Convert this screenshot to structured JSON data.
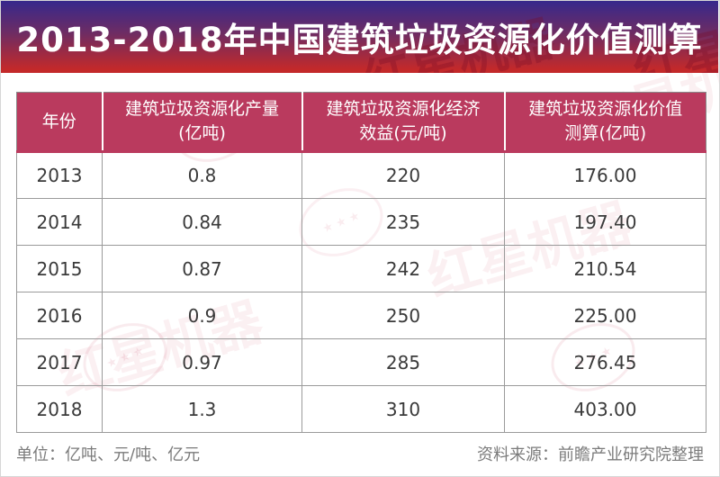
{
  "banner": {
    "title": "2013-2018年中国建筑垃圾资源化价值测算",
    "gradient_top": "#36288c",
    "gradient_bottom": "#c3292a"
  },
  "table": {
    "header_bg": "#ba3a5e",
    "columns": [
      "年份",
      "建筑垃圾资源化产量\n(亿吨)",
      "建筑垃圾资源化经济\n效益(元/吨)",
      "建筑垃圾资源化价值\n测算(亿吨)"
    ],
    "rows": [
      [
        "2013",
        "0.8",
        "220",
        "176.00"
      ],
      [
        "2014",
        "0.84",
        "235",
        "197.40"
      ],
      [
        "2015",
        "0.87",
        "242",
        "210.54"
      ],
      [
        "2016",
        "0.9",
        "250",
        "225.00"
      ],
      [
        "2017",
        "0.97",
        "285",
        "276.45"
      ],
      [
        "2018",
        "1.3",
        "310",
        "403.00"
      ]
    ]
  },
  "footer": {
    "units": "单位：亿吨、元/吨、亿元",
    "source": "资料来源：前瞻产业研究院整理"
  },
  "watermark": {
    "text": "红星机器",
    "subtext": "MACHINERY",
    "stamp_glyph": "★ ★ ★"
  },
  "chart_data": {
    "type": "table",
    "title": "2013-2018年中国建筑垃圾资源化价值测算",
    "columns": [
      "年份",
      "建筑垃圾资源化产量(亿吨)",
      "建筑垃圾资源化经济效益(元/吨)",
      "建筑垃圾资源化价值测算(亿吨)"
    ],
    "rows": [
      [
        2013,
        0.8,
        220,
        176.0
      ],
      [
        2014,
        0.84,
        235,
        197.4
      ],
      [
        2015,
        0.87,
        242,
        210.54
      ],
      [
        2016,
        0.9,
        250,
        225.0
      ],
      [
        2017,
        0.97,
        285,
        276.45
      ],
      [
        2018,
        1.3,
        310,
        403.0
      ]
    ],
    "units_note": "单位：亿吨、元/吨、亿元",
    "source": "前瞻产业研究院整理"
  }
}
